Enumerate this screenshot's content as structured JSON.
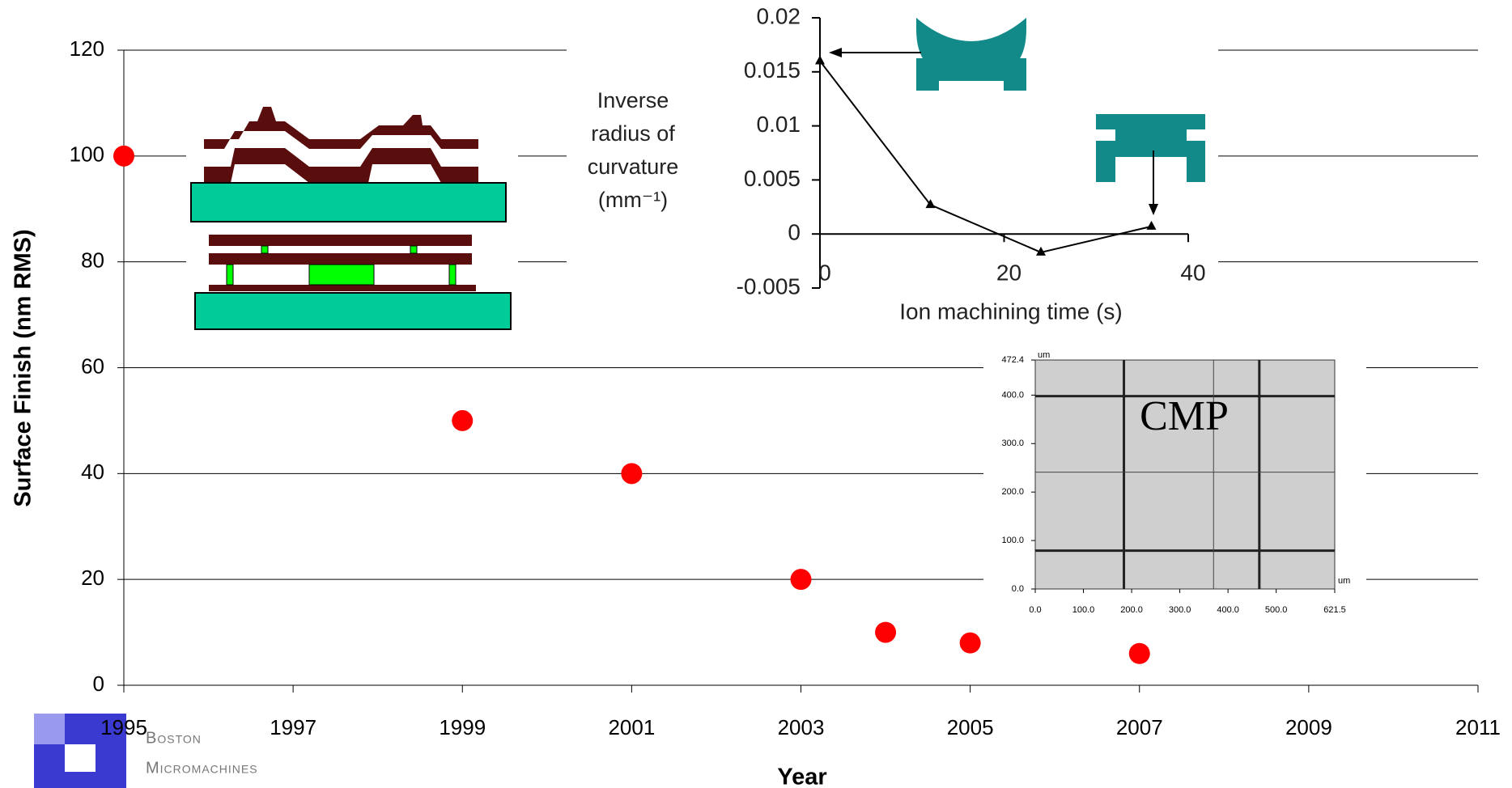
{
  "chart_data": [
    {
      "type": "scatter",
      "x_label": "Year",
      "y_label": "Surface Finish (nm RMS)",
      "x": [
        1995,
        1999,
        2001,
        2003,
        2004,
        2005,
        2007
      ],
      "values": [
        100,
        50,
        40,
        20,
        10,
        8,
        6
      ],
      "color": "#ff0000",
      "xlim": [
        1995,
        2011
      ],
      "xticks": [
        1995,
        1997,
        1999,
        2001,
        2003,
        2005,
        2007,
        2009,
        2011
      ],
      "ylim": [
        0,
        120
      ],
      "yticks": [
        0,
        20,
        40,
        60,
        80,
        100,
        120
      ],
      "grid": true
    },
    {
      "type": "line",
      "x_label": "Ion machining time (s)",
      "y_label_lines": [
        "Inverse",
        "radius of",
        "curvature",
        "(mm⁻¹)"
      ],
      "x": [
        0,
        12,
        24,
        36
      ],
      "values": [
        0.016,
        0.0027,
        -0.0017,
        0.0007
      ],
      "color": "#000000",
      "xlim": [
        0,
        40
      ],
      "xticks": [
        0,
        20,
        40
      ],
      "ylim": [
        -0.005,
        0.02
      ],
      "yticks": [
        -0.005,
        0,
        0.005,
        0.01,
        0.015,
        0.02
      ]
    },
    {
      "type": "image",
      "annotation": "CMP",
      "x_unit": "um",
      "y_unit": "um",
      "xlim": [
        0,
        621.5
      ],
      "xticks": [
        {
          "value": 0,
          "label": "0.0"
        },
        {
          "value": 100,
          "label": "100.0"
        },
        {
          "value": 200,
          "label": "200.0"
        },
        {
          "value": 300,
          "label": "300.0"
        },
        {
          "value": 400,
          "label": "400.0"
        },
        {
          "value": 500,
          "label": "500.0"
        },
        621.5
      ],
      "ylim": [
        0,
        472.4
      ],
      "yticks": [
        {
          "value": 0,
          "label": "0.0"
        },
        {
          "value": 100,
          "label": "100.0"
        },
        {
          "value": 200,
          "label": "200.0"
        },
        {
          "value": 300,
          "label": "300.0"
        },
        {
          "value": 400,
          "label": "400.0"
        },
        472.4
      ]
    }
  ],
  "logo": {
    "lines": [
      "Boston",
      "Micromachines"
    ]
  }
}
